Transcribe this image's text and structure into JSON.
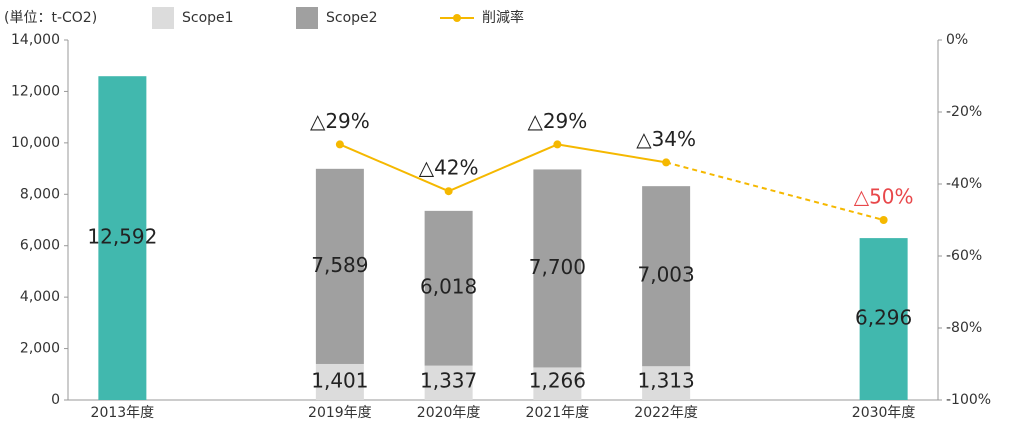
{
  "chart_data": {
    "type": "bar",
    "y_label": "(単位：t-CO2)",
    "categories": [
      "2013年度",
      null,
      "2019年度",
      "2020年度",
      "2021年度",
      "2022年度",
      null,
      "2030年度"
    ],
    "series": [
      {
        "color": "#41b8ae",
        "values": [
          12592,
          null,
          null,
          null,
          null,
          null,
          null,
          6296
        ],
        "value_labels": [
          "12,592",
          null,
          null,
          null,
          null,
          null,
          null,
          "6,296"
        ]
      },
      {
        "name": "Scope1",
        "color": "#dcdcdc",
        "values": [
          null,
          null,
          1401,
          1337,
          1266,
          1313,
          null,
          null
        ],
        "value_labels": [
          null,
          null,
          "1,401",
          "1,337",
          "1,266",
          "1,313",
          null,
          null
        ]
      },
      {
        "name": "Scope2",
        "color": "#a0a0a0",
        "values": [
          null,
          null,
          7589,
          6018,
          7700,
          7003,
          null,
          null
        ],
        "value_labels": [
          null,
          null,
          "7,589",
          "6,018",
          "7,700",
          "7,003",
          null,
          null
        ]
      },
      {
        "name": "削減率",
        "type": "line",
        "axis": "y2",
        "color": "#f5b800",
        "values": [
          null,
          null,
          -29,
          -42,
          -29,
          -34,
          null,
          -50
        ],
        "value_labels": [
          null,
          null,
          "△29%",
          "△42%",
          "△29%",
          "△34%",
          null,
          "△50%"
        ],
        "forecast": [
          null,
          null,
          false,
          false,
          false,
          false,
          null,
          true
        ],
        "forecast_label_color": "#e8474a"
      }
    ],
    "stacked": true,
    "ylim": [
      0,
      14000
    ],
    "yticks": [
      0,
      {
        "value": 2000,
        "label": "2,000"
      },
      {
        "value": 4000,
        "label": "4,000"
      },
      {
        "value": 6000,
        "label": "6,000"
      },
      {
        "value": 8000,
        "label": "8,000"
      },
      {
        "value": 10000,
        "label": "10,000"
      },
      {
        "value": 12000,
        "label": "12,000"
      },
      {
        "value": 14000,
        "label": "14,000"
      }
    ],
    "y2lim": [
      -100,
      0
    ],
    "y2ticks": [
      {
        "value": -100,
        "label": "-100%"
      },
      {
        "value": -80,
        "label": "-80%"
      },
      {
        "value": -60,
        "label": "-60%"
      },
      {
        "value": -40,
        "label": "-40%"
      },
      {
        "value": -20,
        "label": "-20%"
      },
      {
        "value": 0,
        "label": "0%"
      }
    ],
    "grid": false,
    "legend": "top"
  }
}
